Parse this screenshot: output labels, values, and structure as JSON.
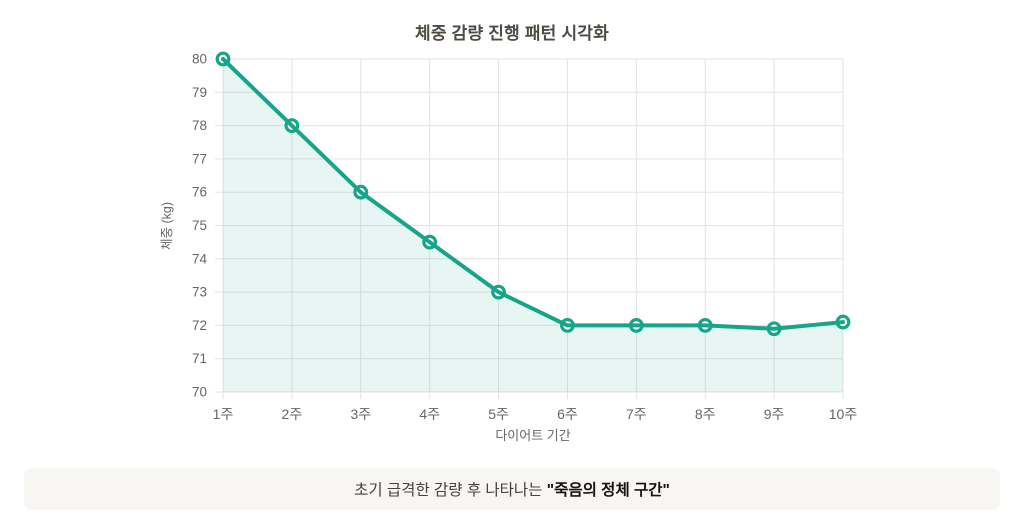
{
  "chart_data": {
    "type": "line",
    "title": "체중 감량 진행 패턴 시각화",
    "xlabel": "다이어트 기간",
    "ylabel": "체중 (kg)",
    "categories": [
      "1주",
      "2주",
      "3주",
      "4주",
      "5주",
      "6주",
      "7주",
      "8주",
      "9주",
      "10주"
    ],
    "series": [
      {
        "name": "체중",
        "values": [
          80,
          78,
          76,
          74.5,
          73,
          72,
          72,
          72,
          71.9,
          72.1
        ]
      }
    ],
    "ylim": [
      70,
      80
    ],
    "y_ticks": [
      70,
      71,
      72,
      73,
      74,
      75,
      76,
      77,
      78,
      79,
      80
    ],
    "grid": true,
    "legend": false,
    "marker": "open-circle",
    "colors": {
      "line": "#17a589",
      "marker_fill": "rgba(255,255,255,0.9)",
      "area": "rgba(23,165,137,0.10)",
      "grid": "#e3e3e3",
      "tick_label": "#666666",
      "axis_title": "#666666",
      "title": "#4f4a44"
    }
  },
  "caption": {
    "text_normal": "초기 급격한 감량 후 나타나는 ",
    "text_bold": "\"죽음의 정체 구간\"",
    "background": "#f7f6f3"
  }
}
